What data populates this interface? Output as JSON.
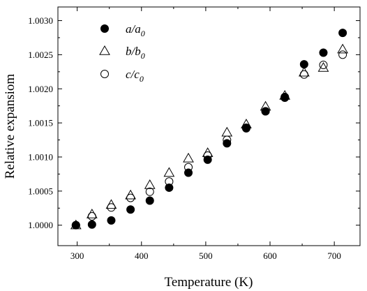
{
  "chart_data": {
    "type": "scatter",
    "xlabel": "Temperature (K)",
    "ylabel": "Relative expansiom",
    "xlim": [
      270,
      740
    ],
    "ylim": [
      0.9997,
      1.0032
    ],
    "xticks": [
      "300",
      "400",
      "500",
      "600",
      "700"
    ],
    "yticks": [
      "1.0000",
      "1.0005",
      "1.0010",
      "1.0015",
      "1.0020",
      "1.0025",
      "1.0030"
    ],
    "legend_position": "top-left",
    "series": [
      {
        "name": "a/a0",
        "label_main": "a/a",
        "label_sub": "0",
        "marker": "filled-circle",
        "color": "#000000",
        "x": [
          298,
          323,
          353,
          383,
          413,
          443,
          473,
          503,
          533,
          563,
          593,
          623,
          653,
          683,
          713
        ],
        "y": [
          1.0,
          1.00001,
          1.00007,
          1.00023,
          1.00036,
          1.00055,
          1.00077,
          1.00096,
          1.0012,
          1.00143,
          1.00167,
          1.00188,
          1.00236,
          1.00253,
          1.00282
        ]
      },
      {
        "name": "b/b0",
        "label_main": "b/b",
        "label_sub": "0",
        "marker": "open-triangle",
        "color": "#000000",
        "x": [
          298,
          323,
          353,
          383,
          413,
          443,
          473,
          503,
          533,
          563,
          593,
          623,
          653,
          683,
          713
        ],
        "y": [
          1.0,
          1.00016,
          1.0003,
          1.00044,
          1.00059,
          1.00077,
          1.00098,
          1.00106,
          1.00136,
          1.00148,
          1.00174,
          1.0019,
          1.00224,
          1.00231,
          1.00258
        ]
      },
      {
        "name": "c/c0",
        "label_main": "c/c",
        "label_sub": "0",
        "marker": "open-circle",
        "color": "#000000",
        "x": [
          298,
          323,
          353,
          383,
          413,
          443,
          473,
          503,
          533,
          563,
          593,
          623,
          653,
          683,
          713
        ],
        "y": [
          1.0,
          1.00013,
          1.00026,
          1.0004,
          1.00049,
          1.00064,
          1.00085,
          1.00102,
          1.00125,
          1.00142,
          1.00167,
          1.00187,
          1.00221,
          1.00235,
          1.0025
        ]
      }
    ]
  }
}
